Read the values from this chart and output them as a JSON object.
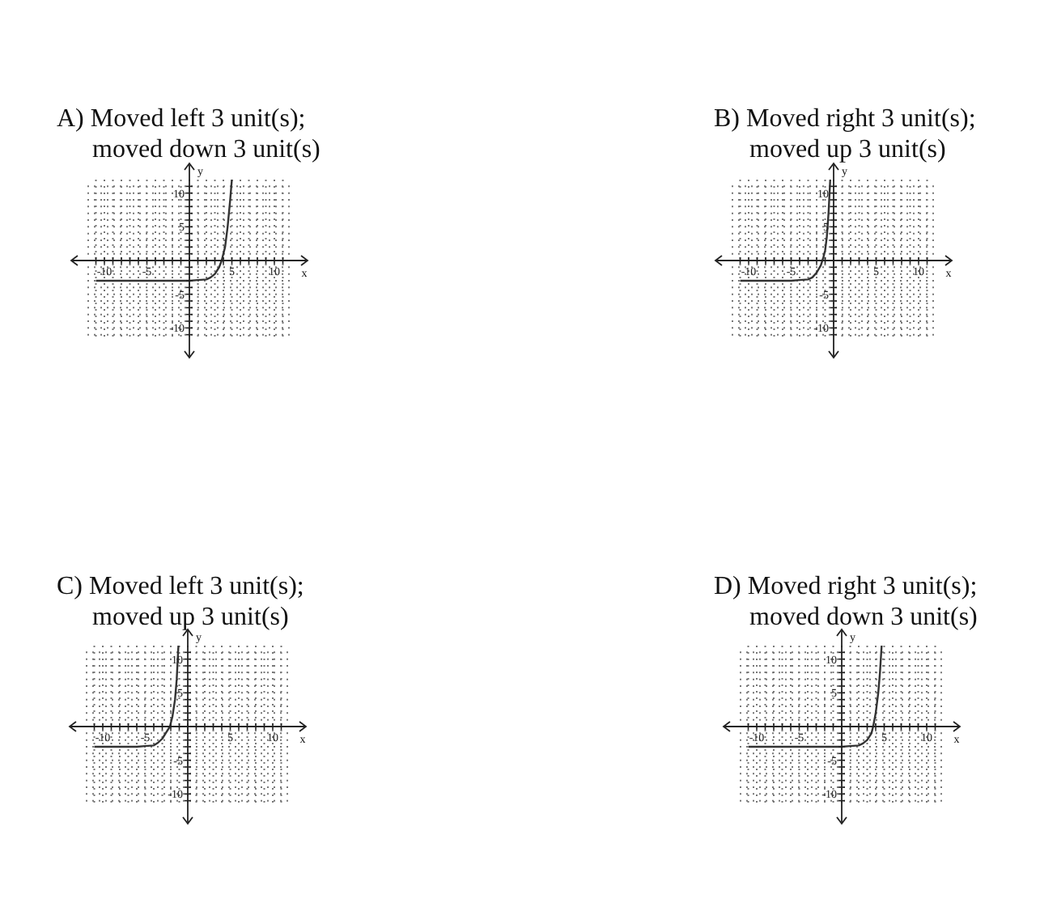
{
  "chart_data": [
    {
      "type": "line",
      "title": "A) Moved left 3 unit(s); moved down 3 unit(s)",
      "xlabel": "x",
      "ylabel": "y",
      "xlim": [
        -12,
        12
      ],
      "ylim": [
        -12,
        12
      ],
      "grid": true,
      "marker": "none",
      "line_style": "solid",
      "xticks": [
        {
          "value": -11,
          "label": null
        },
        {
          "value": -10,
          "label": "-10"
        },
        {
          "value": -9,
          "label": null
        },
        {
          "value": -8,
          "label": null
        },
        {
          "value": -7,
          "label": null
        },
        {
          "value": -6,
          "label": null
        },
        {
          "value": -5,
          "label": "-5"
        },
        {
          "value": -4,
          "label": null
        },
        {
          "value": -3,
          "label": null
        },
        {
          "value": -2,
          "label": null
        },
        {
          "value": -1,
          "label": null
        },
        {
          "value": 0,
          "label": null
        },
        {
          "value": 1,
          "label": null
        },
        {
          "value": 2,
          "label": null
        },
        {
          "value": 3,
          "label": null
        },
        {
          "value": 4,
          "label": null
        },
        {
          "value": 5,
          "label": "5"
        },
        {
          "value": 6,
          "label": null
        },
        {
          "value": 7,
          "label": null
        },
        {
          "value": 8,
          "label": null
        },
        {
          "value": 9,
          "label": null
        },
        {
          "value": 10,
          "label": "10"
        },
        {
          "value": 11,
          "label": null
        }
      ],
      "yticks": [
        {
          "value": -11,
          "label": null
        },
        {
          "value": -10,
          "label": "-10"
        },
        {
          "value": -9,
          "label": null
        },
        {
          "value": -8,
          "label": null
        },
        {
          "value": -7,
          "label": null
        },
        {
          "value": -6,
          "label": null
        },
        {
          "value": -5,
          "label": "-5"
        },
        {
          "value": -4,
          "label": null
        },
        {
          "value": -3,
          "label": null
        },
        {
          "value": -2,
          "label": null
        },
        {
          "value": -1,
          "label": null
        },
        {
          "value": 0,
          "label": null
        },
        {
          "value": 1,
          "label": null
        },
        {
          "value": 2,
          "label": null
        },
        {
          "value": 3,
          "label": null
        },
        {
          "value": 4,
          "label": null
        },
        {
          "value": 5,
          "label": "5"
        },
        {
          "value": 6,
          "label": null
        },
        {
          "value": 7,
          "label": null
        },
        {
          "value": 8,
          "label": null
        },
        {
          "value": 9,
          "label": null
        },
        {
          "value": 10,
          "label": "10"
        },
        {
          "value": 11,
          "label": null
        }
      ],
      "series": [
        {
          "color": "#333333",
          "x": [
            -11,
            -5,
            0,
            1,
            2,
            2.5,
            3,
            3.5,
            3.8,
            4.2,
            4.5,
            4.8,
            5
          ],
          "values": [
            -3,
            -3,
            -3,
            -2.9,
            -2.8,
            -2.5,
            -2,
            -1,
            0,
            2,
            5,
            9,
            12
          ]
        }
      ]
    },
    {
      "type": "line",
      "title": "B) Moved right 3 unit(s); moved up 3 unit(s)",
      "xlabel": "x",
      "ylabel": "y",
      "xlim": [
        -12,
        12
      ],
      "ylim": [
        -12,
        12
      ],
      "grid": true,
      "marker": "none",
      "line_style": "solid",
      "xticks": [
        {
          "value": -11,
          "label": null
        },
        {
          "value": -10,
          "label": "-10"
        },
        {
          "value": -9,
          "label": null
        },
        {
          "value": -8,
          "label": null
        },
        {
          "value": -7,
          "label": null
        },
        {
          "value": -6,
          "label": null
        },
        {
          "value": -5,
          "label": "-5"
        },
        {
          "value": -4,
          "label": null
        },
        {
          "value": -3,
          "label": null
        },
        {
          "value": -2,
          "label": null
        },
        {
          "value": -1,
          "label": null
        },
        {
          "value": 0,
          "label": null
        },
        {
          "value": 1,
          "label": null
        },
        {
          "value": 2,
          "label": null
        },
        {
          "value": 3,
          "label": null
        },
        {
          "value": 4,
          "label": null
        },
        {
          "value": 5,
          "label": "5"
        },
        {
          "value": 6,
          "label": null
        },
        {
          "value": 7,
          "label": null
        },
        {
          "value": 8,
          "label": null
        },
        {
          "value": 9,
          "label": null
        },
        {
          "value": 10,
          "label": "10"
        },
        {
          "value": 11,
          "label": null
        }
      ],
      "yticks": [
        {
          "value": -11,
          "label": null
        },
        {
          "value": -10,
          "label": "-10"
        },
        {
          "value": -9,
          "label": null
        },
        {
          "value": -8,
          "label": null
        },
        {
          "value": -7,
          "label": null
        },
        {
          "value": -6,
          "label": null
        },
        {
          "value": -5,
          "label": "-5"
        },
        {
          "value": -4,
          "label": null
        },
        {
          "value": -3,
          "label": null
        },
        {
          "value": -2,
          "label": null
        },
        {
          "value": -1,
          "label": null
        },
        {
          "value": 0,
          "label": null
        },
        {
          "value": 1,
          "label": null
        },
        {
          "value": 2,
          "label": null
        },
        {
          "value": 3,
          "label": null
        },
        {
          "value": 4,
          "label": null
        },
        {
          "value": 5,
          "label": "5"
        },
        {
          "value": 6,
          "label": null
        },
        {
          "value": 7,
          "label": null
        },
        {
          "value": 8,
          "label": null
        },
        {
          "value": 9,
          "label": null
        },
        {
          "value": 10,
          "label": "10"
        },
        {
          "value": 11,
          "label": null
        }
      ],
      "series": [
        {
          "color": "#333333",
          "x": [
            -11,
            -5,
            -4,
            -3,
            -2.5,
            -2,
            -1.5,
            -1.2,
            -1,
            -0.8,
            -0.6,
            -0.4
          ],
          "values": [
            -3,
            -3,
            -2.9,
            -2.8,
            -2.5,
            -1.8,
            -0.7,
            0.5,
            1.5,
            3.5,
            7,
            12
          ]
        }
      ]
    },
    {
      "type": "line",
      "title": "C) Moved left 3 unit(s); moved up 3 unit(s)",
      "xlabel": "x",
      "ylabel": "y",
      "xlim": [
        -12,
        12
      ],
      "ylim": [
        -12,
        12
      ],
      "grid": true,
      "marker": "none",
      "line_style": "solid",
      "xticks": [
        {
          "value": -11,
          "label": null
        },
        {
          "value": -10,
          "label": "-10"
        },
        {
          "value": -9,
          "label": null
        },
        {
          "value": -8,
          "label": null
        },
        {
          "value": -7,
          "label": null
        },
        {
          "value": -6,
          "label": null
        },
        {
          "value": -5,
          "label": "-5"
        },
        {
          "value": -4,
          "label": null
        },
        {
          "value": -3,
          "label": null
        },
        {
          "value": -2,
          "label": null
        },
        {
          "value": -1,
          "label": null
        },
        {
          "value": 0,
          "label": null
        },
        {
          "value": 1,
          "label": null
        },
        {
          "value": 2,
          "label": null
        },
        {
          "value": 3,
          "label": null
        },
        {
          "value": 4,
          "label": null
        },
        {
          "value": 5,
          "label": "5"
        },
        {
          "value": 6,
          "label": null
        },
        {
          "value": 7,
          "label": null
        },
        {
          "value": 8,
          "label": null
        },
        {
          "value": 9,
          "label": null
        },
        {
          "value": 10,
          "label": "10"
        },
        {
          "value": 11,
          "label": null
        }
      ],
      "yticks": [
        {
          "value": -11,
          "label": null
        },
        {
          "value": -10,
          "label": "-10"
        },
        {
          "value": -9,
          "label": null
        },
        {
          "value": -8,
          "label": null
        },
        {
          "value": -7,
          "label": null
        },
        {
          "value": -6,
          "label": null
        },
        {
          "value": -5,
          "label": "-5"
        },
        {
          "value": -4,
          "label": null
        },
        {
          "value": -3,
          "label": null
        },
        {
          "value": -2,
          "label": null
        },
        {
          "value": -1,
          "label": null
        },
        {
          "value": 0,
          "label": null
        },
        {
          "value": 1,
          "label": null
        },
        {
          "value": 2,
          "label": null
        },
        {
          "value": 3,
          "label": null
        },
        {
          "value": 4,
          "label": null
        },
        {
          "value": 5,
          "label": "5"
        },
        {
          "value": 6,
          "label": null
        },
        {
          "value": 7,
          "label": null
        },
        {
          "value": 8,
          "label": null
        },
        {
          "value": 9,
          "label": null
        },
        {
          "value": 10,
          "label": "10"
        },
        {
          "value": 11,
          "label": null
        }
      ],
      "series": [
        {
          "color": "#333333",
          "x": [
            -11,
            -6,
            -5,
            -4,
            -3.5,
            -3,
            -2.5,
            -2.1,
            -1.8,
            -1.5,
            -1.3,
            -1.1
          ],
          "values": [
            -3,
            -3,
            -2.9,
            -2.8,
            -2.4,
            -1.8,
            -0.8,
            0,
            1.5,
            4,
            7,
            12
          ]
        }
      ]
    },
    {
      "type": "line",
      "title": "D) Moved right 3 unit(s); moved down 3 unit(s)",
      "xlabel": "x",
      "ylabel": "y",
      "xlim": [
        -12,
        12
      ],
      "ylim": [
        -12,
        12
      ],
      "grid": true,
      "marker": "none",
      "line_style": "solid",
      "xticks": [
        {
          "value": -11,
          "label": null
        },
        {
          "value": -10,
          "label": "-10"
        },
        {
          "value": -9,
          "label": null
        },
        {
          "value": -8,
          "label": null
        },
        {
          "value": -7,
          "label": null
        },
        {
          "value": -6,
          "label": null
        },
        {
          "value": -5,
          "label": "-5"
        },
        {
          "value": -4,
          "label": null
        },
        {
          "value": -3,
          "label": null
        },
        {
          "value": -2,
          "label": null
        },
        {
          "value": -1,
          "label": null
        },
        {
          "value": 0,
          "label": null
        },
        {
          "value": 1,
          "label": null
        },
        {
          "value": 2,
          "label": null
        },
        {
          "value": 3,
          "label": null
        },
        {
          "value": 4,
          "label": null
        },
        {
          "value": 5,
          "label": "5"
        },
        {
          "value": 6,
          "label": null
        },
        {
          "value": 7,
          "label": null
        },
        {
          "value": 8,
          "label": null
        },
        {
          "value": 9,
          "label": null
        },
        {
          "value": 10,
          "label": "10"
        },
        {
          "value": 11,
          "label": null
        }
      ],
      "yticks": [
        {
          "value": -11,
          "label": null
        },
        {
          "value": -10,
          "label": "-10"
        },
        {
          "value": -9,
          "label": null
        },
        {
          "value": -8,
          "label": null
        },
        {
          "value": -7,
          "label": null
        },
        {
          "value": -6,
          "label": null
        },
        {
          "value": -5,
          "label": "-5"
        },
        {
          "value": -4,
          "label": null
        },
        {
          "value": -3,
          "label": null
        },
        {
          "value": -2,
          "label": null
        },
        {
          "value": -1,
          "label": null
        },
        {
          "value": 0,
          "label": null
        },
        {
          "value": 1,
          "label": null
        },
        {
          "value": 2,
          "label": null
        },
        {
          "value": 3,
          "label": null
        },
        {
          "value": 4,
          "label": null
        },
        {
          "value": 5,
          "label": "5"
        },
        {
          "value": 6,
          "label": null
        },
        {
          "value": 7,
          "label": null
        },
        {
          "value": 8,
          "label": null
        },
        {
          "value": 9,
          "label": null
        },
        {
          "value": 10,
          "label": "10"
        },
        {
          "value": 11,
          "label": null
        }
      ],
      "series": [
        {
          "color": "#333333",
          "x": [
            -11,
            -5,
            0,
            1,
            2,
            2.5,
            3,
            3.5,
            3.7,
            4,
            4.3,
            4.5,
            4.7
          ],
          "values": [
            -3,
            -3,
            -3,
            -2.9,
            -2.8,
            -2.5,
            -2,
            -1,
            0,
            2,
            5,
            8,
            12
          ]
        }
      ]
    }
  ]
}
